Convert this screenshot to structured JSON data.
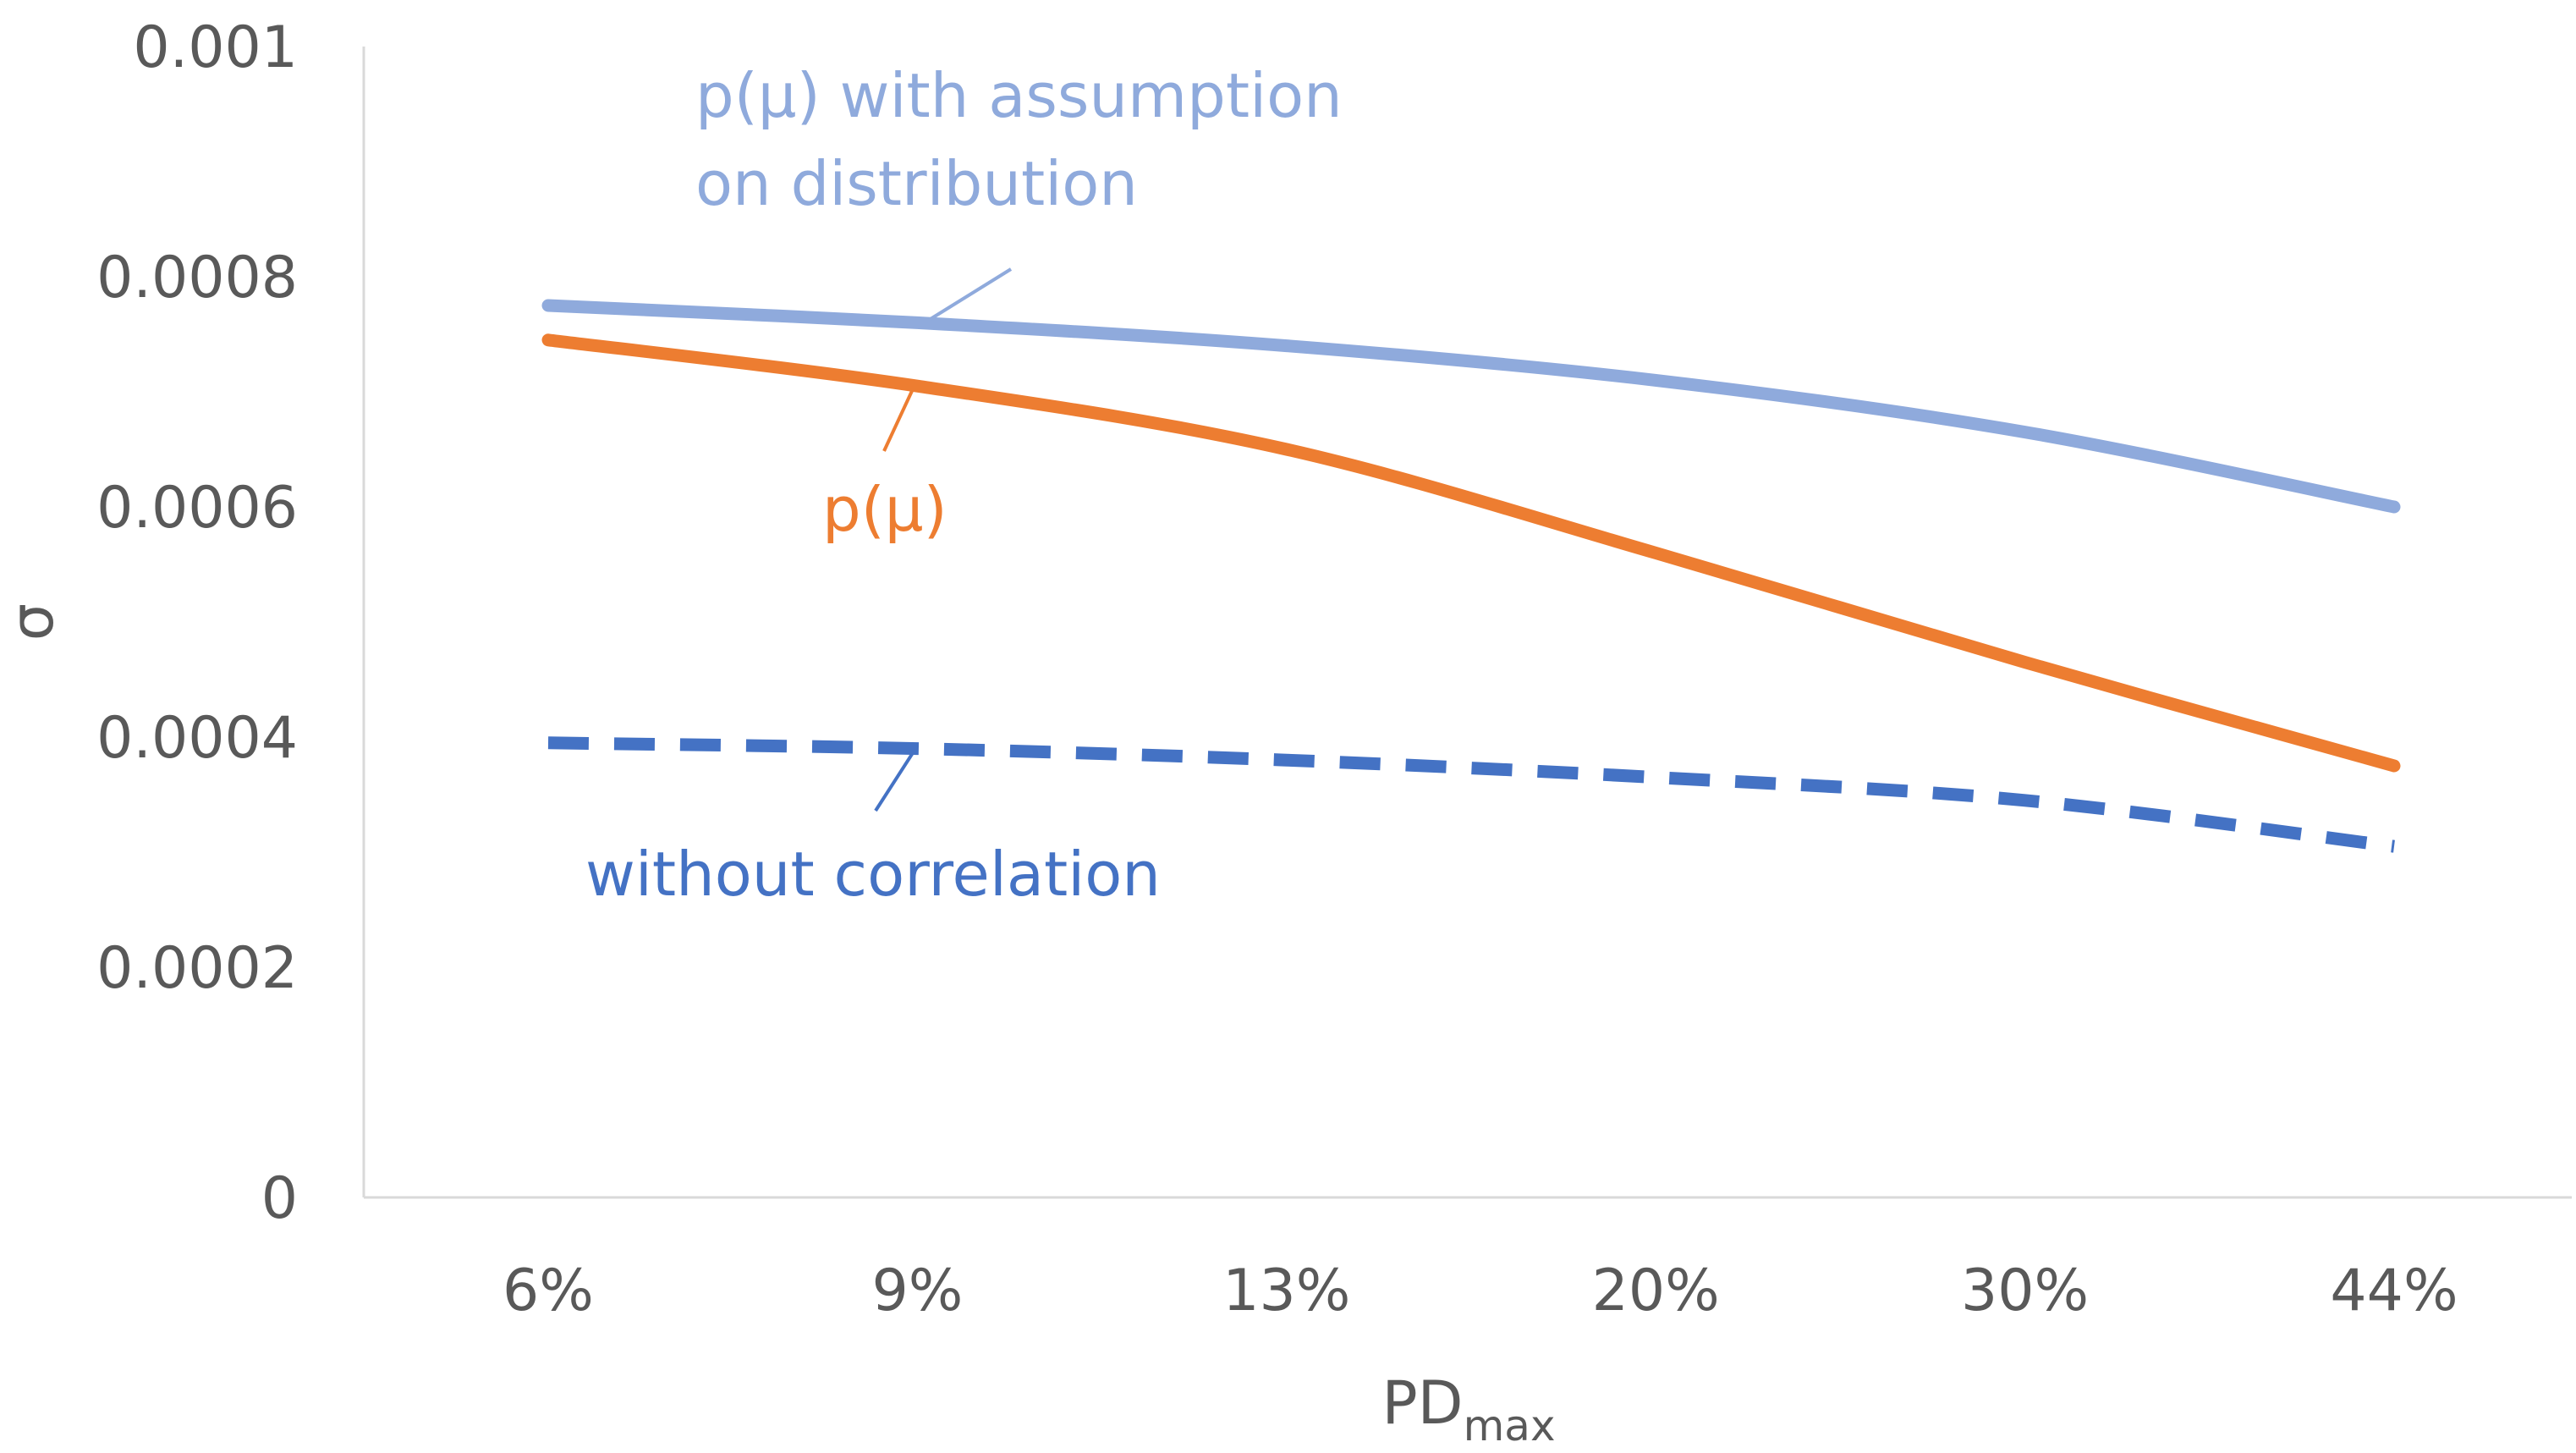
{
  "chart_data": {
    "type": "line",
    "title": "",
    "xlabel": {
      "main": "PD",
      "subscript": "max"
    },
    "ylabel": "σ",
    "categories": [
      "6%",
      "9%",
      "13%",
      "20%",
      "30%",
      "44%"
    ],
    "ylim": [
      0,
      0.001
    ],
    "yticks": [
      "0",
      "0.0002",
      "0.0004",
      "0.0006",
      "0.0008",
      "0.001"
    ],
    "ytick_values": [
      0,
      0.0002,
      0.0004,
      0.0006,
      0.0008,
      0.001
    ],
    "grid": false,
    "series": [
      {
        "name": "p(μ) with assumption on distribution",
        "label_lines": [
          "p(μ) with assumption",
          "on distribution"
        ],
        "color": "#8faadc",
        "style": "solid",
        "values": [
          0.000775,
          0.00076,
          0.00074,
          0.00071,
          0.000665,
          0.0006
        ]
      },
      {
        "name": "p(μ)",
        "label_lines": [
          "p(μ)"
        ],
        "color": "#ed7d31",
        "style": "solid",
        "values": [
          0.000745,
          0.000705,
          0.00065,
          0.00056,
          0.000465,
          0.000375
        ]
      },
      {
        "name": "without correlation",
        "label_lines": [
          "without correlation"
        ],
        "color": "#4472c4",
        "style": "dashed",
        "values": [
          0.000395,
          0.00039,
          0.00038,
          0.000365,
          0.000345,
          0.000305
        ]
      }
    ]
  }
}
